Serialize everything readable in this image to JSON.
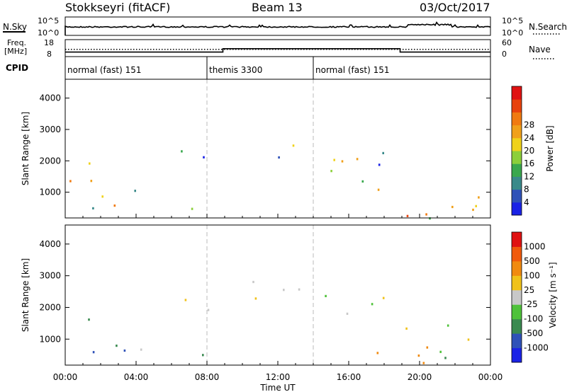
{
  "header": {
    "title": "Stokkseyri (fitACF)",
    "beam": "Beam 13",
    "date": "03/Oct/2017"
  },
  "noise_panel": {
    "left_label": "N.Sky",
    "right_label": "N.Search",
    "left_ticks": [
      "10^5",
      "10^0"
    ],
    "right_ticks": [
      "10^5",
      "10^0"
    ]
  },
  "freq_panel": {
    "left_label_1": "Freq.",
    "left_label_2": "[MHz]",
    "left_ticks": [
      "18",
      "8"
    ],
    "right_label": "Nave",
    "right_ticks": [
      "60",
      "0"
    ],
    "freq_mhz": 12.3,
    "nave_segments": [
      {
        "start_hour": 0,
        "end_hour": 8.9,
        "value": 16
      },
      {
        "start_hour": 8.9,
        "end_hour": 18.9,
        "value": 28
      },
      {
        "start_hour": 18.9,
        "end_hour": 24,
        "value": 16
      }
    ]
  },
  "cpid": {
    "label": "CPID",
    "segments": [
      {
        "start_hour": 0,
        "label": "normal (fast) 151"
      },
      {
        "start_hour": 8,
        "label": "themis 3300"
      },
      {
        "start_hour": 14,
        "label": "normal (fast) 151"
      }
    ]
  },
  "chart_data": [
    {
      "type": "heatmap",
      "panel": "power",
      "ylabel": "Slant Range [km]",
      "ylim": [
        180,
        4600
      ],
      "yticks": [
        1000,
        2000,
        3000,
        4000
      ],
      "xlim": [
        0,
        24
      ],
      "colorbar_label": "Power [dB]",
      "colorbar_levels": [
        "4",
        "8",
        "12",
        "16",
        "20",
        "24",
        "28"
      ],
      "colorbar_colors": [
        "#1a22e6",
        "#2f52b8",
        "#3a8a8a",
        "#3aa84e",
        "#8ccf3a",
        "#f0d21a",
        "#f0a01a",
        "#f07a10",
        "#e8420c",
        "#e01212"
      ],
      "echo_regions": [
        {
          "t0": 0.0,
          "t1": 1.6,
          "r0": 400,
          "r1": 2100,
          "level": 0.45
        },
        {
          "t0": 0.2,
          "t1": 1.3,
          "r0": 700,
          "r1": 1400,
          "level": 0.8
        },
        {
          "t0": 1.2,
          "t1": 2.0,
          "r0": 400,
          "r1": 2300,
          "level": 0.5
        },
        {
          "t0": 1.7,
          "t1": 4.8,
          "r0": 250,
          "r1": 1300,
          "level": 0.45
        },
        {
          "t0": 2.6,
          "t1": 4.2,
          "r0": 450,
          "r1": 1000,
          "level": 0.75
        },
        {
          "t0": 4.8,
          "t1": 7.8,
          "r0": 200,
          "r1": 650,
          "level": 0.35
        },
        {
          "t0": 6.1,
          "t1": 8.8,
          "r0": 1500,
          "r1": 2400,
          "level": 0.15
        },
        {
          "t0": 10.5,
          "t1": 12.2,
          "r0": 2000,
          "r1": 2900,
          "level": 0.2
        },
        {
          "t0": 12.0,
          "t1": 16.5,
          "r0": 1600,
          "r1": 2700,
          "level": 0.6
        },
        {
          "t0": 13.0,
          "t1": 15.6,
          "r0": 1750,
          "r1": 2250,
          "level": 0.8
        },
        {
          "t0": 16.0,
          "t1": 19.5,
          "r0": 1300,
          "r1": 2500,
          "level": 0.25
        },
        {
          "t0": 17.5,
          "t1": 24.0,
          "r0": 200,
          "r1": 1200,
          "level": 0.55
        },
        {
          "t0": 19.0,
          "t1": 22.0,
          "r0": 250,
          "r1": 700,
          "level": 0.85
        },
        {
          "t0": 21.5,
          "t1": 24.0,
          "r0": 300,
          "r1": 1500,
          "level": 0.7
        }
      ]
    },
    {
      "type": "heatmap",
      "panel": "velocity",
      "ylabel": "Slant Range [km]",
      "xlabel": "Time UT",
      "ylim": [
        180,
        4600
      ],
      "yticks": [
        1000,
        2000,
        3000,
        4000
      ],
      "xlim": [
        0,
        24
      ],
      "xticks": [
        "00:00",
        "04:00",
        "08:00",
        "12:00",
        "16:00",
        "20:00",
        "00:00"
      ],
      "colorbar_label": "Velocity [m s⁻¹]",
      "colorbar_levels": [
        "1000",
        "500",
        "100",
        "25",
        "-25",
        "-100",
        "-500",
        "-1000"
      ],
      "colorbar_colors": [
        "#1a22e6",
        "#2f52b8",
        "#3a8a50",
        "#4fc23a",
        "#c8c8c8",
        "#f0c21a",
        "#f08a10",
        "#f05a0c",
        "#e01212"
      ],
      "echo_regions": [
        {
          "t0": 0.0,
          "t1": 1.8,
          "r0": 300,
          "r1": 2100,
          "level": 0.25
        },
        {
          "t0": 1.5,
          "t1": 4.8,
          "r0": 250,
          "r1": 1300,
          "level": 0.2
        },
        {
          "t0": 2.7,
          "t1": 4.5,
          "r0": 500,
          "r1": 1000,
          "level": 0.5
        },
        {
          "t0": 4.8,
          "t1": 7.8,
          "r0": 200,
          "r1": 650,
          "level": 0.2
        },
        {
          "t0": 6.1,
          "t1": 8.8,
          "r0": 1500,
          "r1": 2300,
          "level": 0.5
        },
        {
          "t0": 10.5,
          "t1": 16.5,
          "r0": 1600,
          "r1": 2900,
          "level": 0.5
        },
        {
          "t0": 16.0,
          "t1": 19.5,
          "r0": 1300,
          "r1": 2500,
          "level": 0.5
        },
        {
          "t0": 17.5,
          "t1": 24.0,
          "r0": 200,
          "r1": 1200,
          "level": 0.72
        },
        {
          "t0": 21.0,
          "t1": 24.0,
          "r0": 300,
          "r1": 1500,
          "level": 0.3
        }
      ]
    }
  ]
}
